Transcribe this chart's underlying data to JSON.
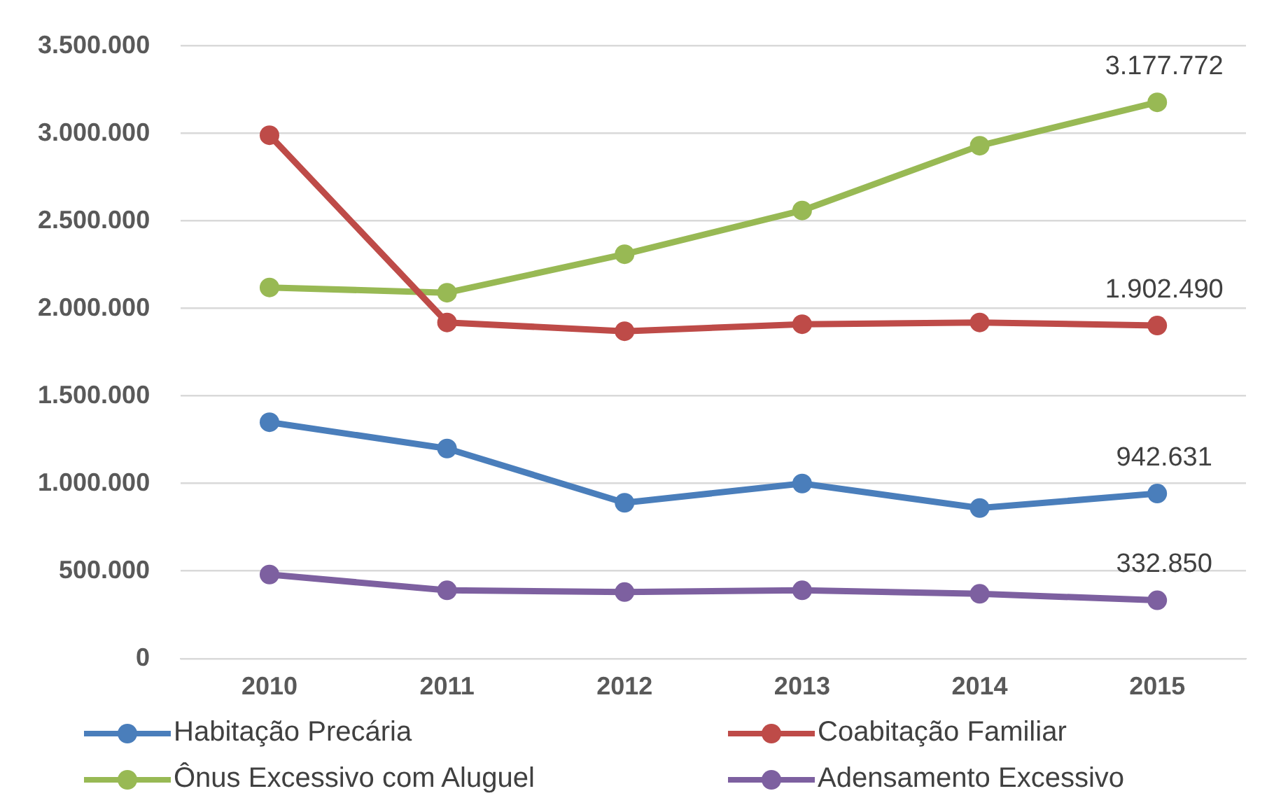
{
  "chart_data": {
    "type": "line",
    "categories": [
      "2010",
      "2011",
      "2012",
      "2013",
      "2014",
      "2015"
    ],
    "series": [
      {
        "name": "Habitação Precária",
        "color": "#4a7ebb",
        "values": [
          1350000,
          1200000,
          890000,
          1000000,
          860000,
          942631
        ],
        "value_labels": [
          null,
          null,
          null,
          null,
          null,
          "942.631"
        ]
      },
      {
        "name": "Coabitação Familiar",
        "color": "#be4b48",
        "values": [
          2990000,
          1920000,
          1870000,
          1910000,
          1920000,
          1902490
        ],
        "value_labels": [
          null,
          null,
          null,
          null,
          null,
          "1.902.490"
        ]
      },
      {
        "name": "Ônus Excessivo com Aluguel",
        "color": "#98b954",
        "values": [
          2120000,
          2090000,
          2310000,
          2560000,
          2930000,
          3177772
        ],
        "value_labels": [
          null,
          null,
          null,
          null,
          null,
          "3.177.772"
        ]
      },
      {
        "name": "Adensamento Excessivo",
        "color": "#7d60a0",
        "values": [
          480000,
          390000,
          380000,
          390000,
          370000,
          332850
        ],
        "value_labels": [
          null,
          null,
          null,
          null,
          null,
          "332.850"
        ]
      }
    ],
    "ylim": [
      0,
      3500000
    ],
    "yticks": [
      0,
      {
        "value": 500000,
        "label": "500.000"
      },
      {
        "value": 1000000,
        "label": "1.000.000"
      },
      {
        "value": 1500000,
        "label": "1.500.000"
      },
      {
        "value": 2000000,
        "label": "2.000.000"
      },
      {
        "value": 2500000,
        "label": "2.500.000"
      },
      {
        "value": 3000000,
        "label": "3.000.000"
      },
      {
        "value": 3500000,
        "label": "3.500.000"
      }
    ],
    "grid": "y",
    "legend": "bottom",
    "marker": "circle",
    "line_style": "solid"
  }
}
